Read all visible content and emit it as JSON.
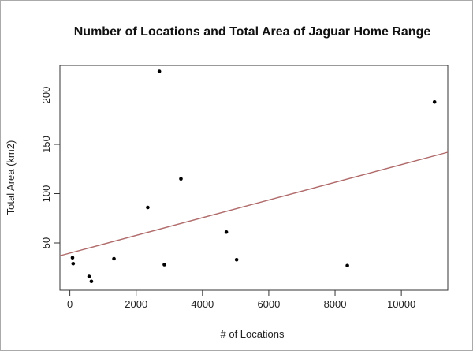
{
  "chart_data": {
    "type": "scatter",
    "title": "Number of Locations and Total Area of Jaguar Home Range",
    "xlabel": "# of Locations",
    "ylabel": "Total Area (km2)",
    "xlim": [
      -300,
      11400
    ],
    "ylim": [
      2,
      230
    ],
    "x_ticks": [
      0,
      2000,
      4000,
      6000,
      8000,
      10000
    ],
    "y_ticks": [
      50,
      100,
      150,
      200
    ],
    "points": [
      {
        "x": 80,
        "y": 35
      },
      {
        "x": 100,
        "y": 29
      },
      {
        "x": 580,
        "y": 16
      },
      {
        "x": 650,
        "y": 11
      },
      {
        "x": 1330,
        "y": 34
      },
      {
        "x": 2350,
        "y": 86
      },
      {
        "x": 2700,
        "y": 224
      },
      {
        "x": 2850,
        "y": 28
      },
      {
        "x": 3350,
        "y": 115
      },
      {
        "x": 4720,
        "y": 61
      },
      {
        "x": 5030,
        "y": 33
      },
      {
        "x": 8370,
        "y": 27
      },
      {
        "x": 11000,
        "y": 193
      }
    ],
    "trendline": {
      "x": [
        -300,
        11400
      ],
      "y": [
        37,
        142
      ],
      "color": "#b06a6a"
    },
    "point_color": "#000000",
    "grid": false,
    "legend": "none"
  }
}
